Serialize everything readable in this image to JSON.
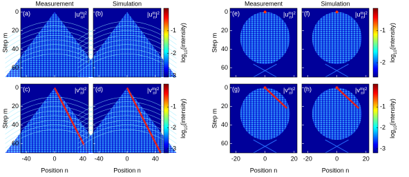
{
  "chart_data": [
    {
      "type": "heatmap",
      "title": "Measurement",
      "label": "(a)",
      "annotation": {
        "open": "|u",
        "sup": "m",
        "sub": "n",
        "close": "|",
        "power": "2"
      },
      "ylabel": "Step m",
      "xlim": [
        -48,
        48
      ],
      "ylim": [
        -4,
        70
      ],
      "xticks": [
        -40,
        0,
        40
      ],
      "yticks": [
        0,
        20,
        40,
        60
      ],
      "shape": "cone"
    },
    {
      "type": "heatmap",
      "title": "Simulation",
      "label": "(b)",
      "annotation": {
        "open": "|u",
        "sup": "m",
        "sub": "n",
        "close": "|",
        "power": "2"
      },
      "xlim": [
        -48,
        48
      ],
      "ylim": [
        -4,
        70
      ],
      "xticks": [
        -40,
        0,
        40
      ],
      "yticks": [
        0,
        20,
        40,
        60
      ],
      "shape": "cone",
      "colorbar": {
        "label": {
          "text": "log",
          "sub": "10",
          "end": "(intensity)"
        },
        "lim": [
          -3.05,
          0
        ],
        "ticks": [
          -1,
          -2,
          -3
        ]
      }
    },
    {
      "type": "heatmap",
      "label": "(c)",
      "annotation": {
        "open": "|v",
        "sup": "m",
        "sub": "n",
        "close": "|",
        "power": "2"
      },
      "ylabel": "Step m",
      "xlabel": "Position n",
      "xlim": [
        -48,
        48
      ],
      "ylim": [
        -4,
        70
      ],
      "xticks": [
        -40,
        0,
        40
      ],
      "yticks": [
        0,
        20,
        40,
        60
      ],
      "shape": "cone-edge"
    },
    {
      "type": "heatmap",
      "label": "(d)",
      "annotation": {
        "open": "|v",
        "sup": "m",
        "sub": "n",
        "close": "|",
        "power": "2"
      },
      "xlabel": "Position n",
      "xlim": [
        -48,
        48
      ],
      "ylim": [
        -4,
        70
      ],
      "xticks": [
        -40,
        0,
        40
      ],
      "yticks": [
        0,
        20,
        40,
        60
      ],
      "shape": "cone-edge",
      "colorbar": {
        "label": {
          "text": "log",
          "sub": "10",
          "end": "(intensity)"
        },
        "lim": [
          -3.2,
          0.1
        ],
        "ticks": [
          -1,
          -2,
          -3
        ]
      }
    },
    {
      "type": "heatmap",
      "title": "Measurement",
      "label": "(e)",
      "annotation": {
        "open": "|u",
        "sup": "m",
        "sub": "n",
        "close": "|",
        "power": "2"
      },
      "ylabel": "Step m",
      "xlim": [
        -24,
        22
      ],
      "ylim": [
        -4,
        70
      ],
      "xticks": [
        -20,
        0,
        20
      ],
      "yticks": [
        0,
        20,
        40,
        60
      ],
      "shape": "lens"
    },
    {
      "type": "heatmap",
      "title": "Simulation",
      "label": "(f)",
      "annotation": {
        "open": "|u",
        "sup": "m",
        "sub": "n",
        "close": "|",
        "power": "2"
      },
      "xlim": [
        -24,
        22
      ],
      "ylim": [
        -4,
        70
      ],
      "xticks": [
        -20,
        0,
        20
      ],
      "yticks": [
        0,
        20,
        40,
        60
      ],
      "shape": "lens",
      "colorbar": {
        "label": {
          "text": "log",
          "sub": "10",
          "end": "(intensity)"
        },
        "lim": [
          -2.45,
          -0.3
        ],
        "ticks": [
          -1,
          -2
        ]
      }
    },
    {
      "type": "heatmap",
      "label": "(g)",
      "annotation": {
        "open": "|v",
        "sup": "m",
        "sub": "n",
        "close": "|",
        "power": "2"
      },
      "ylabel": "Step m",
      "xlabel": "Position n",
      "xlim": [
        -24,
        22
      ],
      "ylim": [
        -4,
        70
      ],
      "xticks": [
        -20,
        0,
        20
      ],
      "yticks": [
        0,
        20,
        40,
        60
      ],
      "shape": "lens-edge"
    },
    {
      "type": "heatmap",
      "label": "(h)",
      "annotation": {
        "open": "|v",
        "sup": "m",
        "sub": "n",
        "close": "|",
        "power": "2"
      },
      "xlabel": "Position n",
      "xlim": [
        -24,
        22
      ],
      "ylim": [
        -4,
        70
      ],
      "xticks": [
        -20,
        0,
        20
      ],
      "yticks": [
        0,
        20,
        40,
        60
      ],
      "shape": "lens-edge",
      "colorbar": {
        "label": {
          "text": "log",
          "sub": "10",
          "end": "(intensity)"
        },
        "lim": [
          -3.2,
          0.1
        ],
        "ticks": [
          -1,
          -2,
          -3
        ]
      }
    }
  ]
}
